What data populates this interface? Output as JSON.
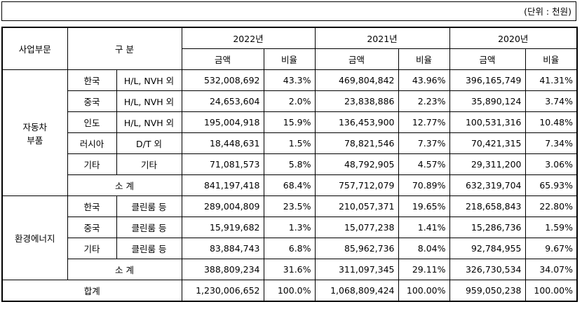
{
  "unit": "(단위 : 천원)",
  "table": {
    "header": {
      "segment": "사업부문",
      "category": "구 분",
      "years": [
        "2022년",
        "2021년",
        "2020년"
      ],
      "subheaders": [
        "금액",
        "비율",
        "금액",
        "비율",
        "금액",
        "비율"
      ]
    },
    "groups": [
      {
        "name": "자동차\n부품",
        "rows": [
          [
            "한국",
            "H/L, NVH 외",
            "532,008,692",
            "43.3%",
            "469,804,842",
            "43.96%",
            "396,165,749",
            "41.31%"
          ],
          [
            "중국",
            "H/L, NVH 외",
            "24,653,604",
            "2.0%",
            "23,838,886",
            "2.23%",
            "35,890,124",
            "3.74%"
          ],
          [
            "인도",
            "H/L, NVH 외",
            "195,004,918",
            "15.9%",
            "136,453,900",
            "12.77%",
            "100,531,316",
            "10.48%"
          ],
          [
            "러시아",
            "D/T 외",
            "18,448,631",
            "1.5%",
            "78,821,546",
            "7.37%",
            "70,421,315",
            "7.34%"
          ],
          [
            "기타",
            "기타",
            "71,081,573",
            "5.8%",
            "48,792,905",
            "4.57%",
            "29,311,200",
            "3.06%"
          ]
        ],
        "subtotal": [
          "소 계",
          "841,197,418",
          "68.4%",
          "757,712,079",
          "70.89%",
          "632,319,704",
          "65.93%"
        ]
      },
      {
        "name": "환경에너지",
        "rows": [
          [
            "한국",
            "클린룸 등",
            "289,004,809",
            "23.5%",
            "210,057,371",
            "19.65%",
            "218,658,843",
            "22.80%"
          ],
          [
            "중국",
            "클린룸 등",
            "15,919,682",
            "1.3%",
            "15,077,238",
            "1.41%",
            "15,286,736",
            "1.59%"
          ],
          [
            "기타",
            "클린룸 등",
            "83,884,743",
            "6.8%",
            "85,962,736",
            "8.04%",
            "92,784,955",
            "9.67%"
          ]
        ],
        "subtotal": [
          "소 계",
          "388,809,234",
          "31.6%",
          "311,097,345",
          "29.11%",
          "326,730,534",
          "34.07%"
        ]
      }
    ],
    "total": [
      "합계",
      "1,230,006,652",
      "100.0%",
      "1,068,809,424",
      "100.00%",
      "959,050,238",
      "100.00%"
    ]
  }
}
